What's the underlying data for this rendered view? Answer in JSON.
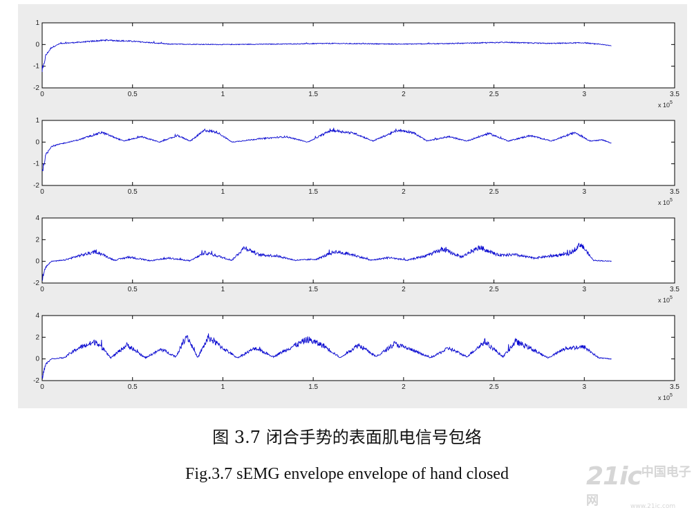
{
  "chart_data": [
    {
      "type": "line",
      "xlim": [
        0,
        3.5
      ],
      "ylim": [
        -2,
        1
      ],
      "xticks": [
        "0",
        "0.5",
        "1",
        "1.5",
        "2",
        "2.5",
        "3",
        "3.5"
      ],
      "yticks": [
        "1",
        "0",
        "-1",
        "-2"
      ],
      "ytick_values": [
        1,
        0,
        -1,
        -2
      ],
      "x_multiplier": "x 10",
      "x_exponent": "5",
      "line_color": "#0a0ad0",
      "x": [
        0,
        0.02,
        0.05,
        0.1,
        0.2,
        0.35,
        0.5,
        0.7,
        1.0,
        1.3,
        1.6,
        2.0,
        2.3,
        2.55,
        2.8,
        3.0,
        3.15
      ],
      "values": [
        -1.3,
        -0.5,
        -0.15,
        0.05,
        0.1,
        0.2,
        0.15,
        0.02,
        0.0,
        0.02,
        0.05,
        0.02,
        0.05,
        0.1,
        0.05,
        0.08,
        -0.05
      ]
    },
    {
      "type": "line",
      "xlim": [
        0,
        3.5
      ],
      "ylim": [
        -2,
        1
      ],
      "xticks": [
        "0",
        "0.5",
        "1",
        "1.5",
        "2",
        "2.5",
        "3",
        "3.5"
      ],
      "yticks": [
        "1",
        "0",
        "-1",
        "-2"
      ],
      "ytick_values": [
        1,
        0,
        -1,
        -2
      ],
      "x_multiplier": "x 10",
      "x_exponent": "5",
      "line_color": "#0a0ad0",
      "x": [
        0,
        0.02,
        0.05,
        0.12,
        0.2,
        0.33,
        0.45,
        0.55,
        0.65,
        0.75,
        0.82,
        0.9,
        0.97,
        1.05,
        1.2,
        1.35,
        1.47,
        1.6,
        1.73,
        1.83,
        1.97,
        2.05,
        2.13,
        2.25,
        2.35,
        2.47,
        2.58,
        2.7,
        2.82,
        2.95,
        3.03,
        3.1,
        3.15
      ],
      "values": [
        -1.4,
        -0.6,
        -0.2,
        -0.05,
        0.1,
        0.45,
        0.05,
        0.25,
        0.0,
        0.3,
        0.05,
        0.55,
        0.45,
        0.0,
        0.15,
        0.25,
        0.0,
        0.55,
        0.4,
        0.05,
        0.55,
        0.45,
        0.05,
        0.25,
        0.05,
        0.4,
        0.05,
        0.3,
        0.05,
        0.45,
        0.05,
        0.1,
        -0.05
      ]
    },
    {
      "type": "line",
      "xlim": [
        0,
        3.5
      ],
      "ylim": [
        -2,
        4
      ],
      "xticks": [
        "0",
        "0.5",
        "1",
        "1.5",
        "2",
        "2.5",
        "3",
        "3.5"
      ],
      "yticks": [
        "4",
        "2",
        "0",
        "-2"
      ],
      "ytick_values": [
        4,
        2,
        0,
        -2
      ],
      "x_multiplier": "x 10",
      "x_exponent": "5",
      "line_color": "#0a0ad0",
      "x": [
        0,
        0.02,
        0.05,
        0.12,
        0.2,
        0.3,
        0.4,
        0.48,
        0.6,
        0.7,
        0.82,
        0.9,
        0.97,
        1.05,
        1.12,
        1.2,
        1.3,
        1.4,
        1.52,
        1.62,
        1.72,
        1.82,
        1.92,
        2.02,
        2.12,
        2.22,
        2.32,
        2.42,
        2.52,
        2.62,
        2.72,
        2.82,
        2.92,
        2.98,
        3.05,
        3.15
      ],
      "values": [
        -1.6,
        -0.5,
        0.0,
        0.1,
        0.5,
        0.9,
        0.1,
        0.4,
        0.05,
        0.3,
        0.05,
        0.8,
        0.5,
        0.1,
        1.3,
        0.6,
        0.5,
        0.1,
        0.2,
        0.9,
        0.6,
        0.1,
        0.35,
        0.1,
        0.5,
        1.1,
        0.4,
        1.3,
        0.6,
        0.6,
        0.3,
        0.5,
        0.7,
        1.6,
        0.1,
        0.0
      ]
    },
    {
      "type": "line",
      "xlim": [
        0,
        3.5
      ],
      "ylim": [
        -2,
        4
      ],
      "xticks": [
        "0",
        "0.5",
        "1",
        "1.5",
        "2",
        "2.5",
        "3",
        "3.5"
      ],
      "yticks": [
        "4",
        "2",
        "0",
        "-2"
      ],
      "ytick_values": [
        4,
        2,
        0,
        -2
      ],
      "x_multiplier": "x 10",
      "x_exponent": "5",
      "line_color": "#0a0ad0",
      "x": [
        0,
        0.02,
        0.05,
        0.12,
        0.2,
        0.3,
        0.38,
        0.47,
        0.57,
        0.66,
        0.74,
        0.8,
        0.86,
        0.92,
        1.0,
        1.08,
        1.18,
        1.28,
        1.38,
        1.47,
        1.56,
        1.65,
        1.75,
        1.85,
        1.95,
        2.05,
        2.15,
        2.25,
        2.35,
        2.45,
        2.55,
        2.62,
        2.7,
        2.8,
        2.9,
        3.0,
        3.08,
        3.15
      ],
      "values": [
        -1.7,
        -0.5,
        0.0,
        0.1,
        1.0,
        1.6,
        0.1,
        1.3,
        0.1,
        0.9,
        0.2,
        2.2,
        0.1,
        2.0,
        1.0,
        0.1,
        1.0,
        0.2,
        1.1,
        1.8,
        1.2,
        0.1,
        1.3,
        0.2,
        1.4,
        0.8,
        0.1,
        1.0,
        0.2,
        1.6,
        0.2,
        1.6,
        1.0,
        0.1,
        1.0,
        1.1,
        0.1,
        0.0
      ]
    }
  ],
  "caption": {
    "chinese": "图 3.7 闭合手势的表面肌电信号包络",
    "english": "Fig.3.7 sEMG envelope envelope of hand closed"
  },
  "watermark": {
    "main": "21ic",
    "chinese": "中国电子网",
    "site": "www.21ic.com"
  }
}
